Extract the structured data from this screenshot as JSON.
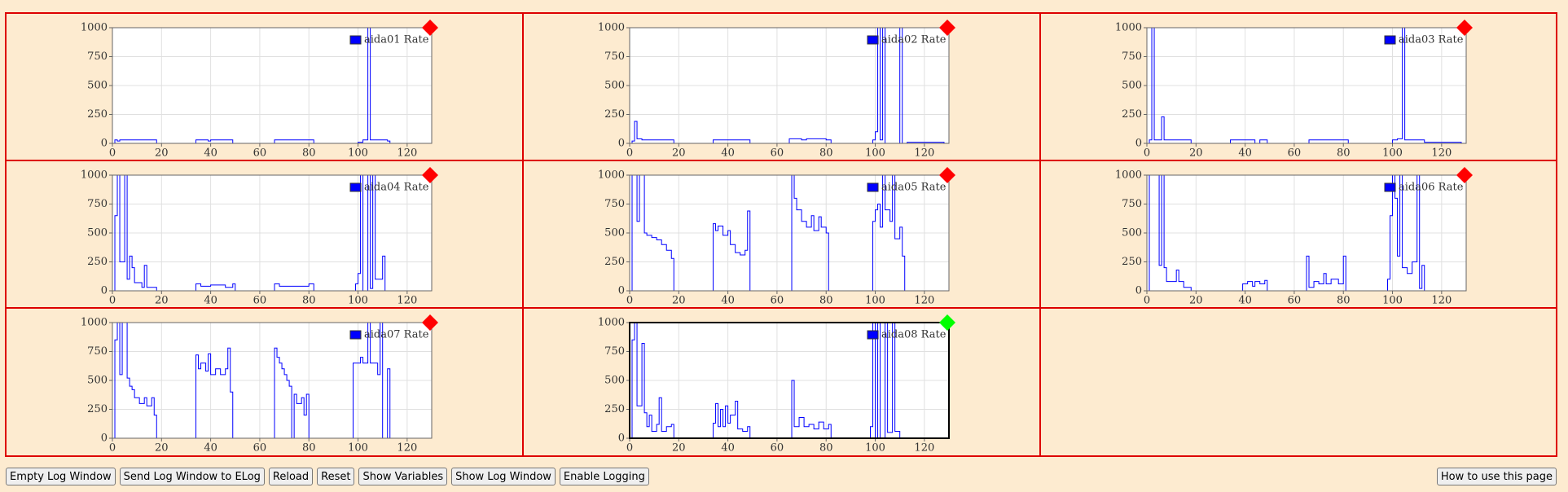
{
  "chart_data": [
    {
      "type": "line",
      "step": true,
      "x": [
        0,
        1,
        2,
        3,
        18,
        34,
        39,
        40,
        49,
        66,
        82,
        100,
        102,
        104,
        105,
        112,
        113,
        128
      ],
      "series": [
        {
          "name": "aida01 Rate",
          "color": "#0000ff",
          "values": [
            0,
            30,
            20,
            30,
            0,
            30,
            20,
            30,
            0,
            30,
            0,
            10,
            30,
            1000,
            30,
            20,
            0,
            0
          ]
        }
      ],
      "xlim": [
        0,
        130
      ],
      "ylim": [
        0,
        1000
      ],
      "xticks": [
        0,
        20,
        40,
        60,
        80,
        100,
        120
      ],
      "yticks": [
        0,
        250,
        500,
        750,
        1000
      ],
      "grid": true,
      "status_color": "#ff0000",
      "frame_color": "#666666",
      "legend_text_color": "#999999"
    },
    {
      "type": "line",
      "step": true,
      "x": [
        0,
        1,
        2,
        3,
        5,
        18,
        34,
        49,
        65,
        70,
        72,
        80,
        82,
        99,
        100,
        101,
        102,
        103,
        104,
        110,
        111,
        113,
        128
      ],
      "series": [
        {
          "name": "aida02 Rate",
          "color": "#0000ff",
          "values": [
            0,
            20,
            190,
            40,
            30,
            0,
            30,
            0,
            40,
            30,
            40,
            30,
            0,
            30,
            100,
            1000,
            30,
            1000,
            0,
            1000,
            0,
            10,
            0
          ]
        }
      ],
      "xlim": [
        0,
        130
      ],
      "ylim": [
        0,
        1000
      ],
      "xticks": [
        0,
        20,
        40,
        60,
        80,
        100,
        120
      ],
      "yticks": [
        0,
        250,
        500,
        750,
        1000
      ],
      "grid": true,
      "status_color": "#ff0000",
      "frame_color": "#666666",
      "legend_text_color": "#999999"
    },
    {
      "type": "line",
      "step": true,
      "x": [
        0,
        1,
        2,
        3,
        6,
        7,
        18,
        34,
        44,
        46,
        49,
        66,
        82,
        100,
        102,
        104,
        105,
        113,
        128
      ],
      "series": [
        {
          "name": "aida03 Rate",
          "color": "#0000ff",
          "values": [
            0,
            30,
            1000,
            30,
            230,
            30,
            0,
            30,
            0,
            30,
            0,
            30,
            0,
            30,
            40,
            1000,
            30,
            10,
            0
          ]
        }
      ],
      "xlim": [
        0,
        130
      ],
      "ylim": [
        0,
        1000
      ],
      "xticks": [
        0,
        20,
        40,
        60,
        80,
        100,
        120
      ],
      "yticks": [
        0,
        250,
        500,
        750,
        1000
      ],
      "grid": true,
      "status_color": "#ff0000",
      "frame_color": "#666666",
      "legend_text_color": "#999999"
    },
    {
      "type": "line",
      "step": true,
      "x": [
        0,
        1,
        2,
        3,
        5,
        6,
        7,
        8,
        9,
        12,
        13,
        14,
        18,
        34,
        36,
        40,
        46,
        49,
        50,
        66,
        68,
        80,
        82,
        99,
        100,
        101,
        102,
        104,
        105,
        106,
        107,
        110,
        111,
        128
      ],
      "series": [
        {
          "name": "aida04 Rate",
          "color": "#0000ff",
          "values": [
            0,
            650,
            1000,
            250,
            1000,
            100,
            300,
            200,
            70,
            30,
            220,
            30,
            0,
            60,
            40,
            50,
            30,
            60,
            0,
            60,
            40,
            60,
            0,
            60,
            150,
            1000,
            0,
            1000,
            20,
            1000,
            100,
            300,
            0,
            0
          ]
        }
      ],
      "xlim": [
        0,
        130
      ],
      "ylim": [
        0,
        1000
      ],
      "xticks": [
        0,
        20,
        40,
        60,
        80,
        100,
        120
      ],
      "yticks": [
        0,
        250,
        500,
        750,
        1000
      ],
      "grid": true,
      "status_color": "#ff0000",
      "frame_color": "#666666",
      "legend_text_color": "#999999"
    },
    {
      "type": "line",
      "step": true,
      "x": [
        0,
        1,
        3,
        4,
        6,
        7,
        9,
        11,
        13,
        15,
        17,
        18,
        33,
        34,
        35,
        36,
        38,
        40,
        41,
        43,
        45,
        47,
        48,
        49,
        65,
        66,
        67,
        68,
        70,
        72,
        74,
        75,
        77,
        78,
        80,
        81,
        98,
        99,
        100,
        101,
        102,
        103,
        104,
        106,
        107,
        108,
        110,
        111,
        112,
        128
      ],
      "series": [
        {
          "name": "aida05 Rate",
          "color": "#0000ff",
          "values": [
            0,
            1000,
            600,
            1000,
            500,
            480,
            460,
            440,
            400,
            350,
            280,
            0,
            0,
            580,
            520,
            560,
            480,
            520,
            400,
            330,
            310,
            350,
            690,
            0,
            0,
            1000,
            800,
            700,
            600,
            550,
            650,
            520,
            640,
            550,
            500,
            0,
            0,
            600,
            700,
            750,
            550,
            1000,
            700,
            600,
            1000,
            450,
            550,
            300,
            0,
            0
          ]
        }
      ],
      "xlim": [
        0,
        130
      ],
      "ylim": [
        0,
        1000
      ],
      "xticks": [
        0,
        20,
        40,
        60,
        80,
        100,
        120
      ],
      "yticks": [
        0,
        250,
        500,
        750,
        1000
      ],
      "grid": true,
      "status_color": "#ff0000",
      "frame_color": "#666666",
      "legend_text_color": "#999999"
    },
    {
      "type": "line",
      "step": true,
      "x": [
        0,
        1,
        5,
        6,
        7,
        8,
        12,
        13,
        15,
        18,
        39,
        41,
        43,
        44,
        46,
        48,
        49,
        65,
        66,
        68,
        70,
        72,
        73,
        75,
        78,
        80,
        81,
        98,
        99,
        100,
        101,
        102,
        103,
        104,
        106,
        108,
        110,
        111,
        112,
        113,
        128
      ],
      "series": [
        {
          "name": "aida06 Rate",
          "color": "#0000ff",
          "values": [
            0,
            1000,
            220,
            1000,
            200,
            80,
            180,
            80,
            30,
            0,
            60,
            80,
            40,
            80,
            60,
            90,
            0,
            300,
            30,
            80,
            60,
            150,
            60,
            100,
            60,
            300,
            0,
            100,
            650,
            1000,
            800,
            300,
            1000,
            200,
            150,
            250,
            1000,
            20,
            220,
            0,
            0
          ]
        }
      ],
      "xlim": [
        0,
        130
      ],
      "ylim": [
        0,
        1000
      ],
      "xticks": [
        0,
        20,
        40,
        60,
        80,
        100,
        120
      ],
      "yticks": [
        0,
        250,
        500,
        750,
        1000
      ],
      "grid": true,
      "status_color": "#ff0000",
      "frame_color": "#666666",
      "legend_text_color": "#999999"
    },
    {
      "type": "line",
      "step": true,
      "x": [
        0,
        1,
        2,
        3,
        4,
        6,
        7,
        8,
        9,
        11,
        13,
        14,
        16,
        17,
        18,
        33,
        34,
        35,
        36,
        38,
        39,
        40,
        42,
        44,
        46,
        47,
        48,
        49,
        66,
        67,
        68,
        69,
        70,
        71,
        72,
        73,
        74,
        75,
        77,
        78,
        79,
        80,
        97,
        98,
        101,
        102,
        104,
        105,
        108,
        109,
        110,
        112,
        113,
        128
      ],
      "series": [
        {
          "name": "aida07 Rate",
          "color": "#0000ff",
          "values": [
            0,
            850,
            1000,
            550,
            1000,
            520,
            450,
            420,
            350,
            300,
            350,
            280,
            350,
            200,
            0,
            0,
            720,
            600,
            650,
            580,
            730,
            550,
            600,
            550,
            600,
            780,
            400,
            0,
            780,
            700,
            650,
            600,
            550,
            500,
            450,
            0,
            380,
            300,
            350,
            200,
            380,
            0,
            0,
            650,
            700,
            650,
            1000,
            650,
            550,
            1000,
            0,
            600,
            0,
            0
          ]
        }
      ],
      "xlim": [
        0,
        130
      ],
      "ylim": [
        0,
        1000
      ],
      "xticks": [
        0,
        20,
        40,
        60,
        80,
        100,
        120
      ],
      "yticks": [
        0,
        250,
        500,
        750,
        1000
      ],
      "grid": true,
      "status_color": "#ff0000",
      "frame_color": "#666666",
      "legend_text_color": "#999999"
    },
    {
      "type": "line",
      "step": true,
      "x": [
        0,
        1,
        2,
        3,
        5,
        6,
        7,
        8,
        9,
        11,
        12,
        13,
        15,
        17,
        18,
        33,
        34,
        35,
        36,
        37,
        38,
        39,
        40,
        41,
        43,
        44,
        46,
        48,
        49,
        66,
        67,
        69,
        71,
        73,
        75,
        77,
        79,
        81,
        82,
        98,
        99,
        100,
        101,
        102,
        104,
        105,
        107,
        108,
        110,
        128
      ],
      "series": [
        {
          "name": "aida08 Rate",
          "color": "#0000ff",
          "values": [
            0,
            850,
            1000,
            280,
            820,
            220,
            100,
            200,
            60,
            120,
            350,
            60,
            100,
            120,
            0,
            0,
            130,
            300,
            100,
            250,
            100,
            280,
            130,
            200,
            320,
            80,
            60,
            100,
            0,
            500,
            100,
            180,
            100,
            120,
            80,
            140,
            80,
            120,
            0,
            100,
            1000,
            0,
            1000,
            0,
            1000,
            50,
            1000,
            60,
            0,
            0
          ]
        }
      ],
      "xlim": [
        0,
        130
      ],
      "ylim": [
        0,
        1000
      ],
      "xticks": [
        0,
        20,
        40,
        60,
        80,
        100,
        120
      ],
      "yticks": [
        0,
        250,
        500,
        750,
        1000
      ],
      "grid": true,
      "status_color": "#00ff00",
      "frame_color": "#000000",
      "legend_text_color": "#000000"
    }
  ],
  "buttons": [
    "Empty Log Window",
    "Send Log Window to ELog",
    "Reload",
    "Reset",
    "Show Variables",
    "Show Log Window",
    "Enable Logging"
  ],
  "help_button": "How to use this page"
}
